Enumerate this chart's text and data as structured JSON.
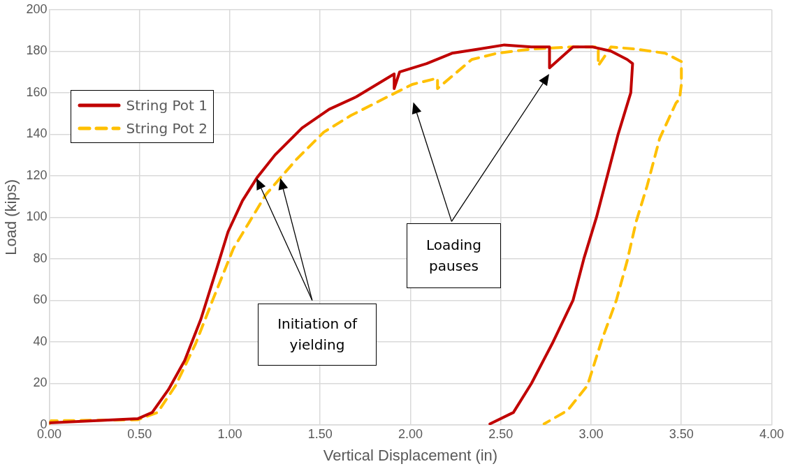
{
  "chart_data": {
    "type": "line",
    "xlabel": "Vertical Displacement (in)",
    "ylabel": "Load (kips)",
    "xlim": [
      0,
      4
    ],
    "xticks": [
      {
        "value": 0,
        "label": "0.00"
      },
      {
        "value": 0.5,
        "label": "0.50"
      },
      {
        "value": 1,
        "label": "1.00"
      },
      {
        "value": 1.5,
        "label": "1.50"
      },
      {
        "value": 2,
        "label": "2.00"
      },
      {
        "value": 2.5,
        "label": "2.50"
      },
      {
        "value": 3,
        "label": "3.00"
      },
      {
        "value": 3.5,
        "label": "3.50"
      },
      {
        "value": 4,
        "label": "4.00"
      }
    ],
    "ylim": [
      0,
      200
    ],
    "yticks": [
      0,
      20,
      40,
      60,
      80,
      100,
      120,
      140,
      160,
      180,
      200
    ],
    "grid": true,
    "legend": "top left",
    "marker": "none",
    "annotations": [
      "Initiation of yielding",
      "Loading pauses"
    ],
    "series": [
      {
        "name": "String Pot 1",
        "color": "#c00000",
        "line_style": "solid",
        "x": [
          0,
          0.49,
          0.57,
          0.66,
          0.75,
          0.84,
          0.93,
          0.99,
          1.07,
          1.15,
          1.25,
          1.4,
          1.55,
          1.7,
          1.91,
          1.91,
          1.94,
          2.09,
          2.23,
          2.38,
          2.52,
          2.67,
          2.77,
          2.77,
          2.9,
          3.01,
          3.11,
          3.2,
          3.23,
          3.22,
          3.15,
          3.09,
          3.03,
          2.96,
          2.9,
          2.79,
          2.67,
          2.57,
          2.44
        ],
        "values": [
          1,
          3,
          6,
          17,
          31,
          51,
          76,
          93,
          108,
          119,
          130,
          143,
          152,
          158,
          169,
          162,
          170,
          174,
          179,
          181,
          183,
          182,
          182,
          172,
          182,
          182,
          180,
          176,
          174,
          160,
          140,
          120,
          100,
          80,
          60,
          40,
          20,
          6,
          0.5
        ]
      },
      {
        "name": "String Pot 2",
        "color": "#ffc000",
        "line_style": "dashed",
        "x": [
          0,
          0.01,
          0.49,
          0.6,
          0.7,
          0.81,
          0.9,
          1.02,
          1.11,
          1.2,
          1.28,
          1.37,
          1.52,
          1.67,
          1.85,
          2.01,
          2.15,
          2.15,
          2.34,
          2.48,
          2.67,
          2.89,
          3.04,
          3.04,
          3.11,
          3.25,
          3.41,
          3.5,
          3.5,
          3.49,
          3.47,
          3.38,
          3.31,
          3.25,
          3.2,
          3.14,
          3.06,
          2.98,
          2.87,
          2.74
        ],
        "values": [
          0.5,
          2,
          2.5,
          6,
          19,
          39,
          59,
          85,
          98,
          111,
          119,
          128,
          141,
          149,
          157,
          164,
          167,
          162,
          176,
          179,
          181,
          182,
          182,
          173,
          182,
          181,
          179,
          175,
          164,
          157,
          155,
          138,
          115,
          98,
          79,
          60,
          41,
          19,
          7,
          0.5
        ]
      }
    ]
  }
}
